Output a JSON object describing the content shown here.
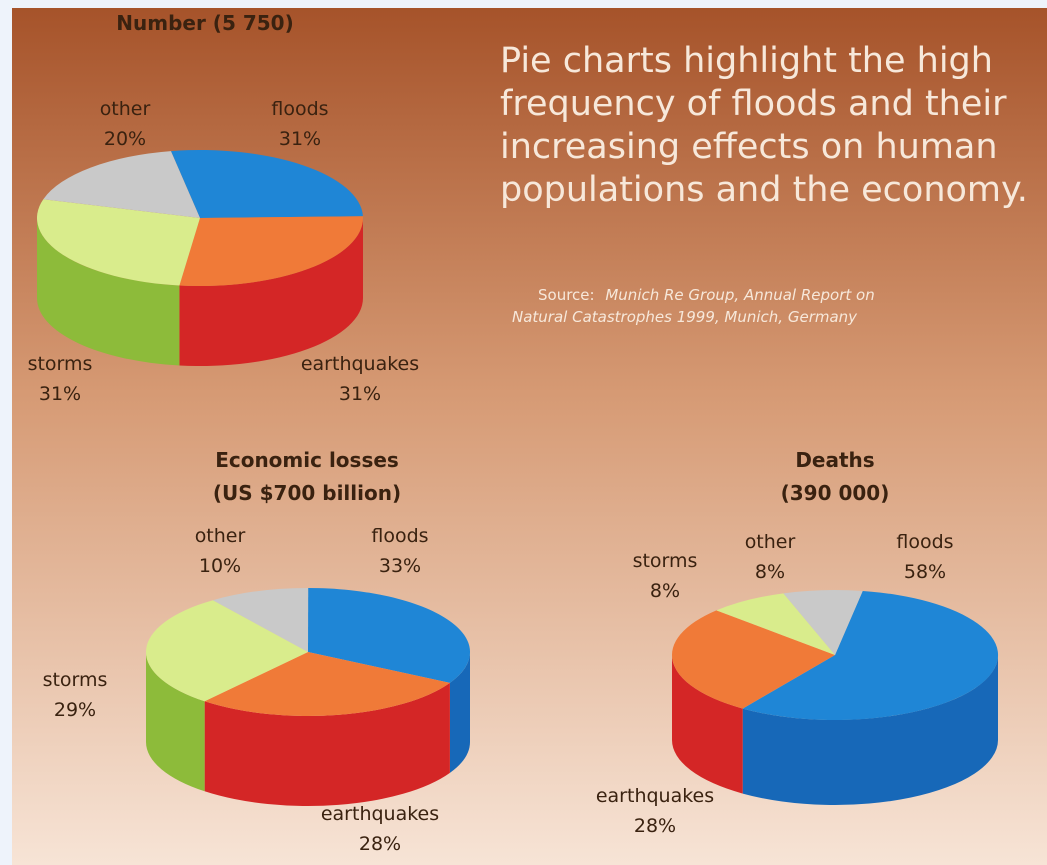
{
  "headline": [
    "Pie charts highlight the high",
    "frequency of floods and their",
    "increasing effects on human",
    "populations and the economy."
  ],
  "source": {
    "prefix": "Source:",
    "lines": [
      "Munich Re Group, Annual Report on",
      "Natural Catastrophes 1999, Munich, Germany"
    ]
  },
  "chart_data": [
    {
      "type": "pie",
      "title": [
        "Number (5 750)"
      ],
      "categories": [
        "floods",
        "earthquakes",
        "storms",
        "other"
      ],
      "values": [
        31,
        31,
        31,
        20
      ],
      "value_labels": [
        "31%",
        "31%",
        "31%",
        "20%"
      ],
      "colors": [
        "#1f86d6",
        "#f07a38",
        "#d9ec8c",
        "#c9c9c9"
      ],
      "side_colors": [
        "#1768b8",
        "#d42626",
        "#8dbb3a",
        "#9a9a9a"
      ]
    },
    {
      "type": "pie",
      "title": [
        "Economic losses",
        "(US $700 billion)"
      ],
      "categories": [
        "floods",
        "earthquakes",
        "storms",
        "other"
      ],
      "values": [
        33,
        28,
        29,
        10
      ],
      "value_labels": [
        "33%",
        "28%",
        "29%",
        "10%"
      ],
      "colors": [
        "#1f86d6",
        "#f07a38",
        "#d9ec8c",
        "#c9c9c9"
      ],
      "side_colors": [
        "#1768b8",
        "#d42626",
        "#8dbb3a",
        "#9a9a9a"
      ]
    },
    {
      "type": "pie",
      "title": [
        "Deaths",
        "(390 000)"
      ],
      "categories": [
        "floods",
        "earthquakes",
        "storms",
        "other"
      ],
      "values": [
        58,
        28,
        8,
        8
      ],
      "value_labels": [
        "58%",
        "28%",
        "8%",
        "8%"
      ],
      "colors": [
        "#1f86d6",
        "#f07a38",
        "#d9ec8c",
        "#c9c9c9"
      ],
      "side_colors": [
        "#1768b8",
        "#d42626",
        "#8dbb3a",
        "#9a9a9a"
      ]
    }
  ]
}
